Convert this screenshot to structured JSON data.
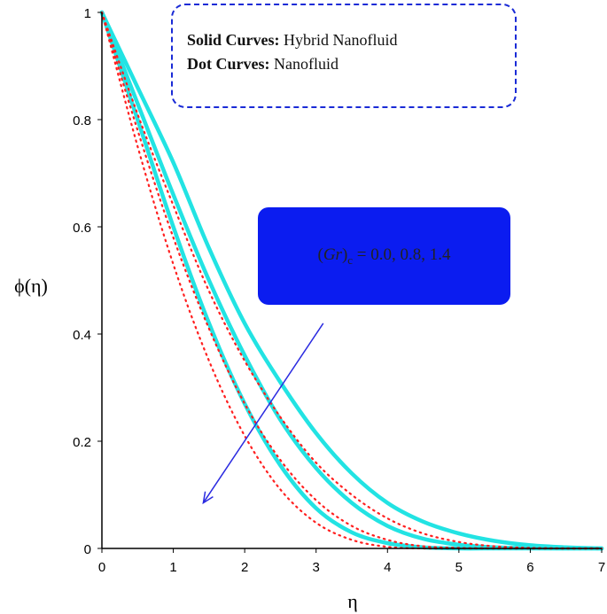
{
  "chart_data": {
    "type": "line",
    "xlabel": "η",
    "ylabel": "ϕ(η)",
    "xlim": [
      0,
      7
    ],
    "ylim": [
      0,
      1
    ],
    "xticks": [
      "0",
      "1",
      "2",
      "3",
      "4",
      "5",
      "6",
      "7"
    ],
    "yticks": [
      "0",
      "0.2",
      "0.4",
      "0.6",
      "0.8",
      "1"
    ],
    "grid": false,
    "colors": {
      "solid": "#22e3e3",
      "dotted": "#ff2020",
      "arrow": "#2a2ae0",
      "legend_border": "#1a2bd6",
      "annotation_bg": "#0b1cf0"
    },
    "series": [
      {
        "style": "solid",
        "x": [
          0,
          0.5,
          1,
          1.5,
          2,
          2.5,
          3,
          3.5,
          4,
          4.5,
          5,
          5.5,
          6,
          6.5,
          7
        ],
        "y": [
          1,
          0.86,
          0.72,
          0.56,
          0.42,
          0.31,
          0.215,
          0.14,
          0.085,
          0.05,
          0.028,
          0.014,
          0.006,
          0.002,
          0
        ]
      },
      {
        "style": "solid",
        "x": [
          0,
          0.5,
          1,
          1.5,
          2,
          2.5,
          3,
          3.5,
          4,
          4.5,
          5,
          5.5,
          6,
          6.5,
          7
        ],
        "y": [
          1,
          0.83,
          0.66,
          0.5,
          0.36,
          0.24,
          0.15,
          0.085,
          0.042,
          0.018,
          0.007,
          0.002,
          0.0005,
          0,
          0
        ]
      },
      {
        "style": "solid",
        "x": [
          0,
          0.5,
          1,
          1.5,
          2,
          2.5,
          3,
          3.5,
          4,
          4.5,
          5,
          5.5,
          6,
          6.5,
          7
        ],
        "y": [
          1,
          0.8,
          0.6,
          0.42,
          0.27,
          0.155,
          0.075,
          0.03,
          0.01,
          0.002,
          0,
          0,
          0,
          0,
          0
        ]
      },
      {
        "style": "dotted",
        "x": [
          0,
          0.5,
          1,
          1.5,
          2,
          2.5,
          3,
          3.5,
          4,
          4.5,
          5,
          5.5,
          6,
          6.5,
          7
        ],
        "y": [
          1,
          0.81,
          0.64,
          0.48,
          0.35,
          0.245,
          0.16,
          0.1,
          0.056,
          0.028,
          0.012,
          0.004,
          0.001,
          0,
          0
        ]
      },
      {
        "style": "dotted",
        "x": [
          0,
          0.5,
          1,
          1.5,
          2,
          2.5,
          3,
          3.5,
          4,
          4.5,
          5,
          5.5,
          6,
          6.5,
          7
        ],
        "y": [
          1,
          0.78,
          0.58,
          0.41,
          0.27,
          0.165,
          0.09,
          0.042,
          0.016,
          0.004,
          0.001,
          0,
          0,
          0,
          0
        ]
      },
      {
        "style": "dotted",
        "x": [
          0,
          0.5,
          1,
          1.5,
          2,
          2.5,
          3,
          3.5,
          4,
          4.5,
          5,
          5.5,
          6,
          6.5,
          7
        ],
        "y": [
          1,
          0.75,
          0.53,
          0.35,
          0.21,
          0.11,
          0.048,
          0.016,
          0.003,
          0,
          0,
          0,
          0,
          0,
          0
        ]
      }
    ],
    "arrow": {
      "from": [
        3.1,
        0.42
      ],
      "to": [
        1.42,
        0.085
      ]
    },
    "legend": {
      "line1_bold": "Solid Curves:",
      "line1_text": "Hybrid Nanofluid",
      "line2_bold": "Dot Curves:",
      "line2_text": "Nanofluid"
    },
    "annotation": {
      "var": "Gr",
      "sub": "c",
      "values": "= 0.0, 0.8, 1.4"
    }
  }
}
